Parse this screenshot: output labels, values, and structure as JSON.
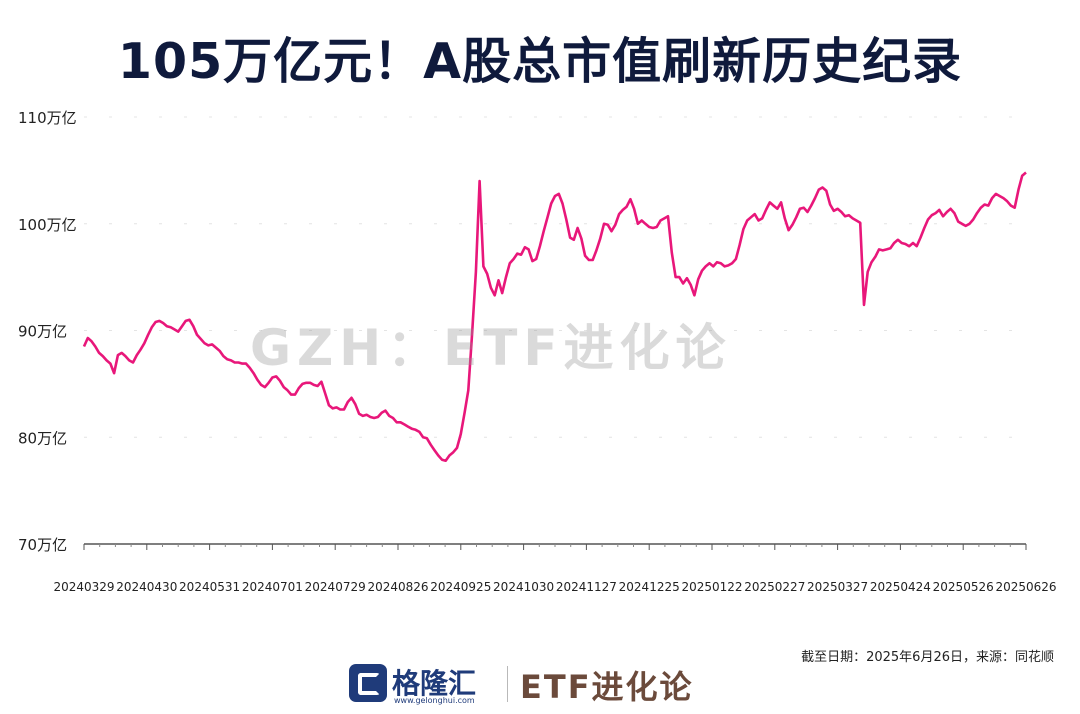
{
  "title": "105万亿元！A股总市值刷新历史纪录",
  "watermark": "GZH：ETF进化论",
  "source_note": "截至日期：2025年6月26日，来源：同花顺",
  "footer": {
    "logo_name": "格隆汇",
    "logo_url": "www.gelonghui.com",
    "brand": "ETF进化论"
  },
  "colors": {
    "line": "#e8177a",
    "title": "#0f1a3c",
    "axis": "#555555"
  },
  "chart_data": {
    "type": "line",
    "title": "105万亿元！A股总市值刷新历史纪录",
    "xlabel": "",
    "ylabel": "",
    "ylim": [
      70,
      110
    ],
    "yticks": [
      70,
      80,
      90,
      100,
      110
    ],
    "ytick_labels": [
      "70万亿",
      "80万亿",
      "90万亿",
      "100万亿",
      "110万亿"
    ],
    "xticks": [
      "20240329",
      "20240430",
      "20240531",
      "20240701",
      "20240729",
      "20240826",
      "20240925",
      "20241030",
      "20241127",
      "20241225",
      "20250122",
      "20250227",
      "20250327",
      "20250424",
      "20250526",
      "20250626"
    ],
    "grid": true,
    "legend": "none",
    "series": [
      {
        "values": [
          88.5,
          89.3,
          89.0,
          88.5,
          87.9,
          87.6,
          87.2,
          86.9,
          86.0,
          87.7,
          87.9,
          87.6,
          87.2,
          87.0,
          87.7,
          88.2,
          88.8,
          89.6,
          90.3,
          90.8,
          90.9,
          90.7,
          90.4,
          90.3,
          90.1,
          89.9,
          90.4,
          90.9,
          91.0,
          90.4,
          89.6,
          89.2,
          88.8,
          88.6,
          88.7,
          88.4,
          88.1,
          87.6,
          87.3,
          87.2,
          87.0,
          87.0,
          86.9,
          86.9,
          86.5,
          86.0,
          85.4,
          84.9,
          84.7,
          85.1,
          85.6,
          85.7,
          85.3,
          84.7,
          84.4,
          84.0,
          84.0,
          84.6,
          85.0,
          85.1,
          85.1,
          84.9,
          84.8,
          85.2,
          84.1,
          83.0,
          82.7,
          82.8,
          82.6,
          82.6,
          83.3,
          83.7,
          83.1,
          82.2,
          82.0,
          82.1,
          81.9,
          81.8,
          81.9,
          82.3,
          82.5,
          82.0,
          81.8,
          81.4,
          81.4,
          81.2,
          81.0,
          80.8,
          80.7,
          80.5,
          80.0,
          79.9,
          79.3,
          78.8,
          78.3,
          77.9,
          77.8,
          78.3,
          78.6,
          79.0,
          80.3,
          82.3,
          84.4,
          89.7,
          95.5,
          104.0,
          96.0,
          95.3,
          94.0,
          93.3,
          94.7,
          93.5,
          95.0,
          96.3,
          96.7,
          97.2,
          97.1,
          97.8,
          97.6,
          96.5,
          96.7,
          97.9,
          99.3,
          100.6,
          101.9,
          102.6,
          102.8,
          101.9,
          100.4,
          98.7,
          98.5,
          99.6,
          98.6,
          97.0,
          96.6,
          96.6,
          97.5,
          98.6,
          100.0,
          99.9,
          99.3,
          99.9,
          100.9,
          101.3,
          101.6,
          102.3,
          101.4,
          100.0,
          100.3,
          100.0,
          99.7,
          99.6,
          99.7,
          100.3,
          100.5,
          100.7,
          97.3,
          95.0,
          95.0,
          94.4,
          94.9,
          94.3,
          93.3,
          94.8,
          95.6,
          96.0,
          96.3,
          96.0,
          96.4,
          96.3,
          96.0,
          96.1,
          96.3,
          96.7,
          98.0,
          99.5,
          100.3,
          100.6,
          100.9,
          100.3,
          100.5,
          101.3,
          102.0,
          101.7,
          101.4,
          102.0,
          100.5,
          99.4,
          99.9,
          100.6,
          101.4,
          101.5,
          101.1,
          101.7,
          102.4,
          103.2,
          103.4,
          103.1,
          101.8,
          101.2,
          101.4,
          101.1,
          100.7,
          100.8,
          100.5,
          100.3,
          100.1,
          92.4,
          95.5,
          96.4,
          96.9,
          97.6,
          97.5,
          97.6,
          97.7,
          98.2,
          98.5,
          98.2,
          98.1,
          97.9,
          98.2,
          97.9,
          98.7,
          99.6,
          100.4,
          100.8,
          101.0,
          101.3,
          100.7,
          101.1,
          101.4,
          101.0,
          100.2,
          100.0,
          99.8,
          100.0,
          100.4,
          101.0,
          101.5,
          101.8,
          101.7,
          102.4,
          102.8,
          102.6,
          102.4,
          102.1,
          101.7,
          101.5,
          103.2,
          104.5,
          104.8
        ]
      }
    ]
  }
}
